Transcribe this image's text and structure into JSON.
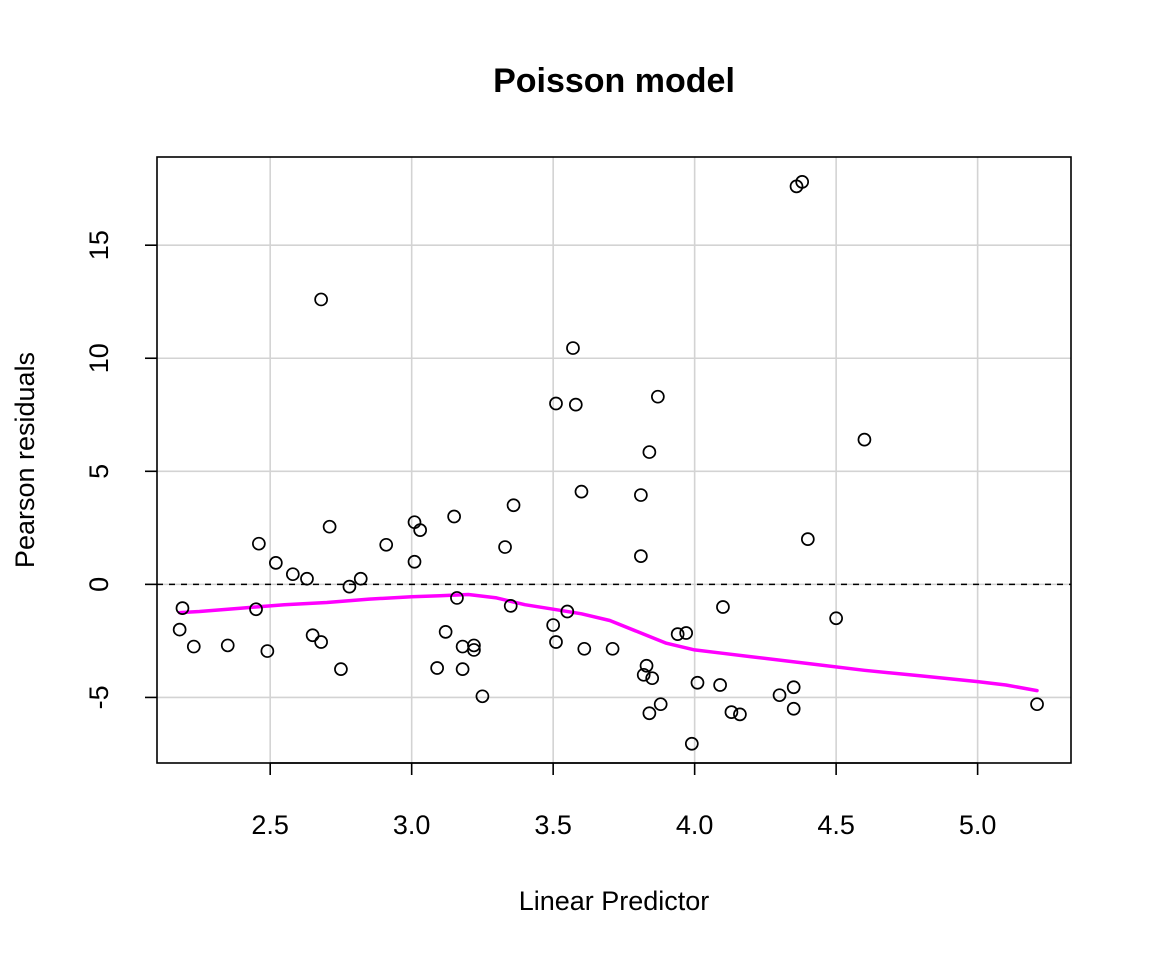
{
  "chart_data": {
    "type": "scatter",
    "title": "Poisson model",
    "xlabel": "Linear Predictor",
    "ylabel": "Pearson residuals",
    "xlim": [
      2.1,
      5.33
    ],
    "ylim": [
      -7.9,
      18.9
    ],
    "xticks": [
      2.5,
      3.0,
      3.5,
      4.0,
      4.5,
      5.0
    ],
    "xtick_labels": [
      "2.5",
      "3.0",
      "3.5",
      "4.0",
      "4.5",
      "5.0"
    ],
    "yticks": [
      -5,
      0,
      5,
      10,
      15
    ],
    "ytick_labels": [
      "-5",
      "0",
      "5",
      "10",
      "15"
    ],
    "grid": true,
    "reference_line": 0,
    "colors": {
      "points": "#000000",
      "smooth": "#ff00ff",
      "grid": "#d3d3d3",
      "reference": "#000000"
    },
    "points": [
      {
        "x": 2.18,
        "y": -2.0
      },
      {
        "x": 2.19,
        "y": -1.05
      },
      {
        "x": 2.23,
        "y": -2.75
      },
      {
        "x": 2.35,
        "y": -2.7
      },
      {
        "x": 2.45,
        "y": -1.1
      },
      {
        "x": 2.46,
        "y": 1.8
      },
      {
        "x": 2.49,
        "y": -2.95
      },
      {
        "x": 2.52,
        "y": 0.95
      },
      {
        "x": 2.58,
        "y": 0.45
      },
      {
        "x": 2.63,
        "y": 0.25
      },
      {
        "x": 2.65,
        "y": -2.25
      },
      {
        "x": 2.68,
        "y": -2.55
      },
      {
        "x": 2.68,
        "y": 12.6
      },
      {
        "x": 2.71,
        "y": 2.55
      },
      {
        "x": 2.75,
        "y": -3.75
      },
      {
        "x": 2.78,
        "y": -0.1
      },
      {
        "x": 2.82,
        "y": 0.25
      },
      {
        "x": 2.91,
        "y": 1.75
      },
      {
        "x": 3.01,
        "y": 2.75
      },
      {
        "x": 3.01,
        "y": 1.0
      },
      {
        "x": 3.03,
        "y": 2.4
      },
      {
        "x": 3.09,
        "y": -3.7
      },
      {
        "x": 3.12,
        "y": -2.1
      },
      {
        "x": 3.15,
        "y": 3.0
      },
      {
        "x": 3.16,
        "y": -0.6
      },
      {
        "x": 3.18,
        "y": -2.75
      },
      {
        "x": 3.18,
        "y": -3.75
      },
      {
        "x": 3.22,
        "y": -2.7
      },
      {
        "x": 3.22,
        "y": -2.9
      },
      {
        "x": 3.25,
        "y": -4.95
      },
      {
        "x": 3.33,
        "y": 1.65
      },
      {
        "x": 3.35,
        "y": -0.95
      },
      {
        "x": 3.36,
        "y": 3.5
      },
      {
        "x": 3.5,
        "y": -1.8
      },
      {
        "x": 3.51,
        "y": -2.55
      },
      {
        "x": 3.51,
        "y": 8.0
      },
      {
        "x": 3.55,
        "y": -1.2
      },
      {
        "x": 3.57,
        "y": 10.45
      },
      {
        "x": 3.58,
        "y": 7.95
      },
      {
        "x": 3.6,
        "y": 4.1
      },
      {
        "x": 3.61,
        "y": -2.85
      },
      {
        "x": 3.71,
        "y": -2.85
      },
      {
        "x": 3.81,
        "y": 1.25
      },
      {
        "x": 3.81,
        "y": 3.95
      },
      {
        "x": 3.82,
        "y": -4.0
      },
      {
        "x": 3.83,
        "y": -3.6
      },
      {
        "x": 3.84,
        "y": 5.85
      },
      {
        "x": 3.84,
        "y": -5.7
      },
      {
        "x": 3.85,
        "y": -4.15
      },
      {
        "x": 3.87,
        "y": 8.3
      },
      {
        "x": 3.88,
        "y": -5.3
      },
      {
        "x": 3.94,
        "y": -2.2
      },
      {
        "x": 3.97,
        "y": -2.15
      },
      {
        "x": 3.99,
        "y": -7.05
      },
      {
        "x": 4.01,
        "y": -4.35
      },
      {
        "x": 4.09,
        "y": -4.45
      },
      {
        "x": 4.1,
        "y": -1.0
      },
      {
        "x": 4.13,
        "y": -5.65
      },
      {
        "x": 4.16,
        "y": -5.75
      },
      {
        "x": 4.3,
        "y": -4.9
      },
      {
        "x": 4.35,
        "y": -4.55
      },
      {
        "x": 4.35,
        "y": -5.5
      },
      {
        "x": 4.36,
        "y": 17.6
      },
      {
        "x": 4.38,
        "y": 17.8
      },
      {
        "x": 4.4,
        "y": 2.0
      },
      {
        "x": 4.5,
        "y": -1.5
      },
      {
        "x": 4.6,
        "y": 6.4
      },
      {
        "x": 5.21,
        "y": -5.3
      }
    ],
    "smooth": [
      {
        "x": 2.18,
        "y": -1.25
      },
      {
        "x": 2.25,
        "y": -1.2
      },
      {
        "x": 2.4,
        "y": -1.05
      },
      {
        "x": 2.55,
        "y": -0.9
      },
      {
        "x": 2.7,
        "y": -0.8
      },
      {
        "x": 2.85,
        "y": -0.65
      },
      {
        "x": 3.0,
        "y": -0.55
      },
      {
        "x": 3.1,
        "y": -0.5
      },
      {
        "x": 3.2,
        "y": -0.45
      },
      {
        "x": 3.3,
        "y": -0.6
      },
      {
        "x": 3.4,
        "y": -0.9
      },
      {
        "x": 3.5,
        "y": -1.1
      },
      {
        "x": 3.6,
        "y": -1.3
      },
      {
        "x": 3.7,
        "y": -1.6
      },
      {
        "x": 3.8,
        "y": -2.1
      },
      {
        "x": 3.9,
        "y": -2.6
      },
      {
        "x": 4.0,
        "y": -2.9
      },
      {
        "x": 4.1,
        "y": -3.05
      },
      {
        "x": 4.2,
        "y": -3.2
      },
      {
        "x": 4.4,
        "y": -3.5
      },
      {
        "x": 4.6,
        "y": -3.8
      },
      {
        "x": 4.8,
        "y": -4.05
      },
      {
        "x": 5.0,
        "y": -4.3
      },
      {
        "x": 5.1,
        "y": -4.45
      },
      {
        "x": 5.21,
        "y": -4.7
      }
    ]
  }
}
